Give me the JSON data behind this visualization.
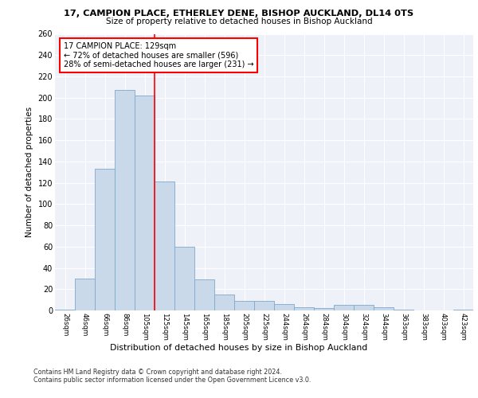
{
  "title_line1": "17, CAMPION PLACE, ETHERLEY DENE, BISHOP AUCKLAND, DL14 0TS",
  "title_line2": "Size of property relative to detached houses in Bishop Auckland",
  "xlabel": "Distribution of detached houses by size in Bishop Auckland",
  "ylabel": "Number of detached properties",
  "categories": [
    "26sqm",
    "46sqm",
    "66sqm",
    "86sqm",
    "105sqm",
    "125sqm",
    "145sqm",
    "165sqm",
    "185sqm",
    "205sqm",
    "225sqm",
    "244sqm",
    "264sqm",
    "284sqm",
    "304sqm",
    "324sqm",
    "344sqm",
    "363sqm",
    "383sqm",
    "403sqm",
    "423sqm"
  ],
  "values": [
    1,
    30,
    133,
    207,
    202,
    121,
    60,
    29,
    15,
    9,
    9,
    6,
    3,
    2,
    5,
    5,
    3,
    1,
    0,
    0,
    1
  ],
  "bar_color": "#c9d9ea",
  "bar_edge_color": "#7fa8cc",
  "bg_color": "#eef2f8",
  "grid_color": "#ffffff",
  "vline_color": "red",
  "annotation_text": "17 CAMPION PLACE: 129sqm\n← 72% of detached houses are smaller (596)\n28% of semi-detached houses are larger (231) →",
  "annotation_box_color": "white",
  "annotation_box_edge": "red",
  "footnote1": "Contains HM Land Registry data © Crown copyright and database right 2024.",
  "footnote2": "Contains public sector information licensed under the Open Government Licence v3.0.",
  "ylim": [
    0,
    260
  ],
  "yticks": [
    0,
    20,
    40,
    60,
    80,
    100,
    120,
    140,
    160,
    180,
    200,
    220,
    240,
    260
  ]
}
